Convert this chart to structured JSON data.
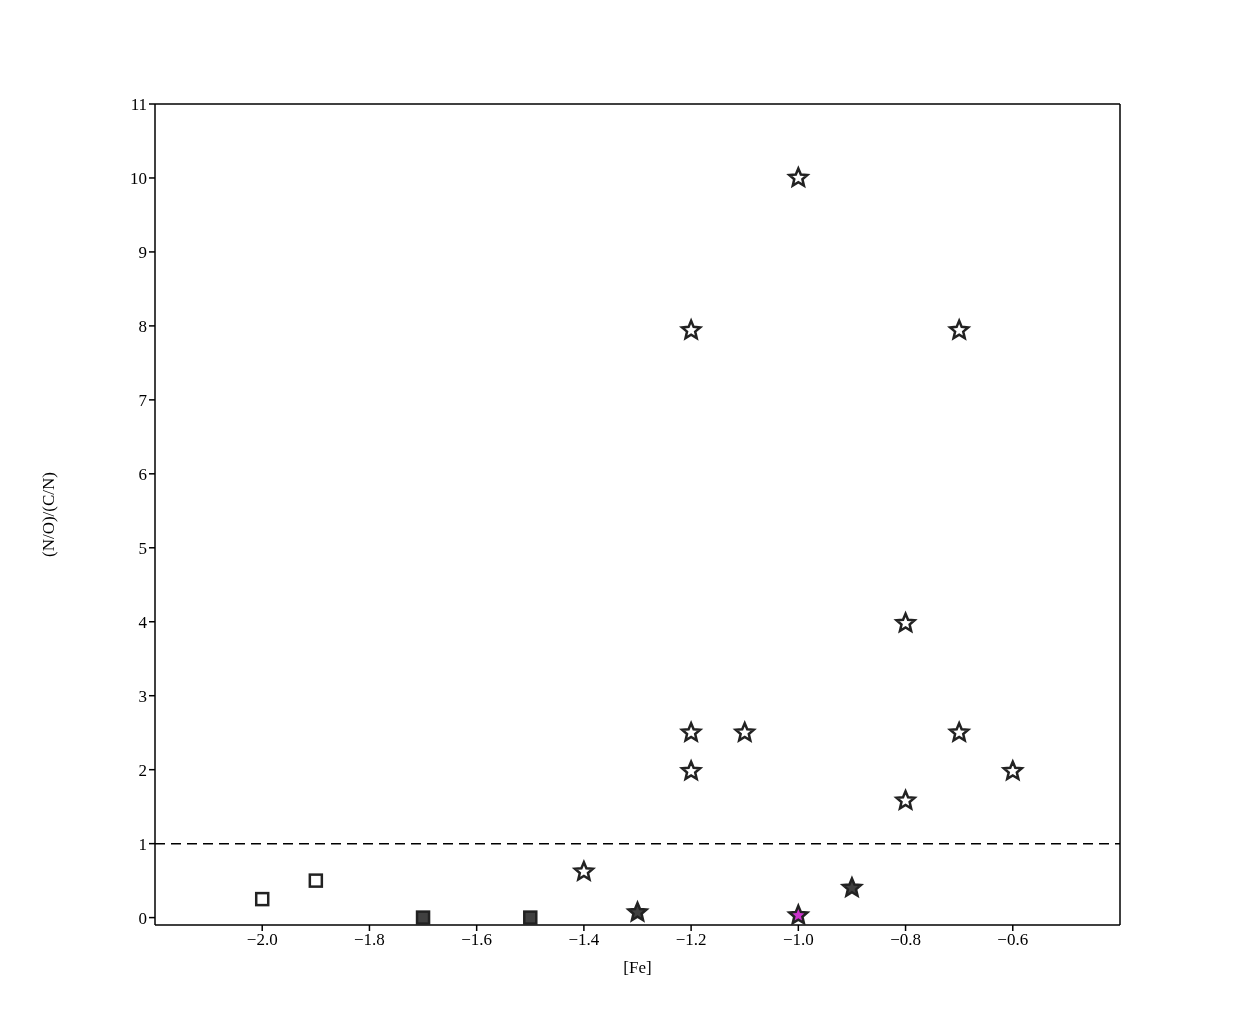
{
  "chart_data": {
    "type": "scatter",
    "xlabel": "[Fe]",
    "ylabel": "(N/O)/(C/N)",
    "xlim": [
      -2.2,
      -0.4
    ],
    "xticks": [
      {
        "value": -2.0,
        "label": "−2.0"
      },
      {
        "value": -1.8,
        "label": "−1.8"
      },
      {
        "value": -1.6,
        "label": "−1.6"
      },
      {
        "value": -1.4,
        "label": "−1.4"
      },
      {
        "value": -1.2,
        "label": "−1.2"
      },
      {
        "value": -1.0,
        "label": "−1.0"
      },
      {
        "value": -0.8,
        "label": "−0.8"
      },
      {
        "value": -0.6,
        "label": "−0.6"
      }
    ],
    "ylim": [
      -0.1,
      11
    ],
    "yticks": [
      0,
      1,
      2,
      3,
      4,
      5,
      6,
      7,
      8,
      9,
      10,
      11
    ],
    "grid": false,
    "ref_lines": [
      {
        "axis": "y",
        "value": 1,
        "color": "#000000",
        "line_style": "dashed"
      }
    ],
    "series": [
      {
        "marker": "square",
        "color": "#ffffff",
        "x": [
          -2.0,
          -1.9
        ],
        "values": [
          0.25,
          0.5
        ]
      },
      {
        "marker": "square",
        "color": "#404040",
        "x": [
          -1.7,
          -1.5
        ],
        "values": [
          0.0,
          0.0
        ]
      },
      {
        "marker": "star",
        "color": "#ffffff",
        "x": [
          -1.4,
          -1.2,
          -1.2,
          -1.2,
          -1.1,
          -1.0,
          -0.8,
          -0.8,
          -0.7,
          -0.7,
          -0.6
        ],
        "values": [
          0.62,
          7.94,
          2.5,
          1.98,
          2.5,
          10.0,
          3.98,
          1.58,
          7.94,
          2.5,
          1.98
        ]
      },
      {
        "marker": "star",
        "color": "#404040",
        "x": [
          -1.3,
          -0.9
        ],
        "values": [
          0.07,
          0.4
        ]
      },
      {
        "marker": "star",
        "color": "#cc33cc",
        "x": [
          -1.0
        ],
        "values": [
          0.03
        ]
      }
    ]
  }
}
